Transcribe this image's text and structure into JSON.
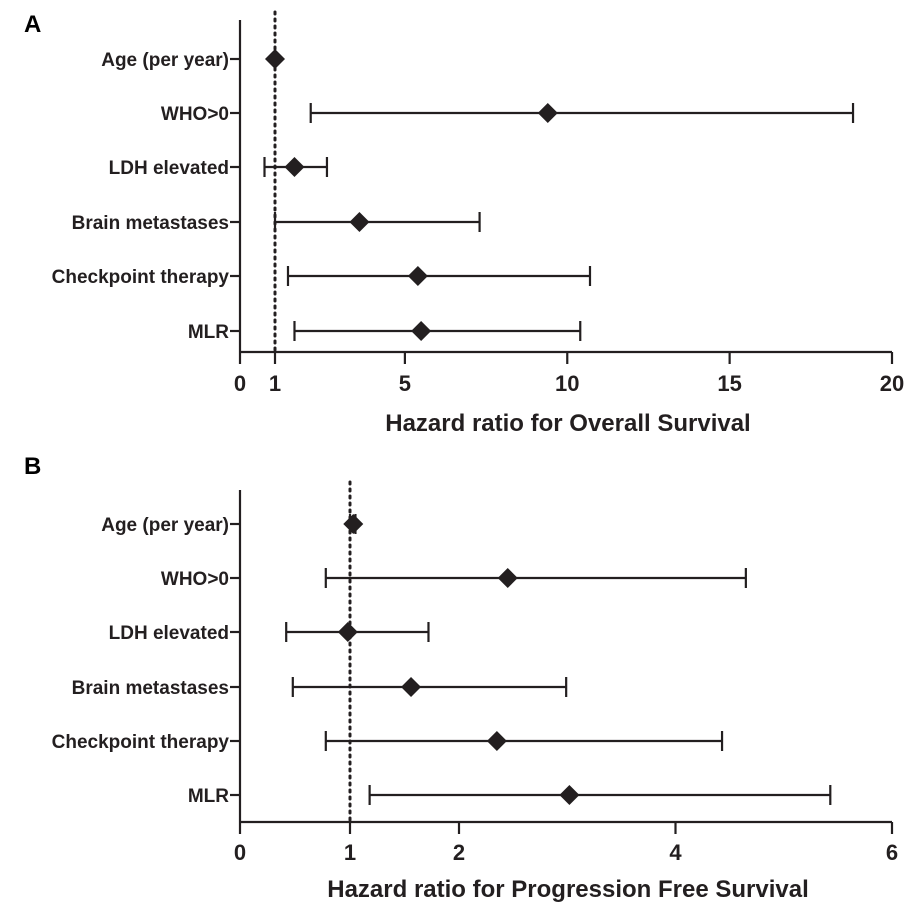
{
  "chart_data": [
    {
      "type": "forest",
      "panel": "A",
      "xlabel": "Hazard ratio for Overall Survival",
      "xlim": [
        0,
        20
      ],
      "xticks": [
        {
          "label": "0",
          "value": 0
        },
        {
          "label": "1",
          "value": 1
        },
        {
          "label": "5",
          "value": 5
        },
        {
          "label": "10",
          "value": 10
        },
        {
          "label": "15",
          "value": 15
        },
        {
          "label": "20",
          "value": 20
        }
      ],
      "reference_line": 1,
      "categories": [
        "Age (per year)",
        "WHO>0",
        "LDH elevated",
        "Brain metastases",
        "Checkpoint therapy",
        "MLR"
      ],
      "estimates": [
        1.0,
        9.4,
        1.6,
        3.6,
        5.4,
        5.5
      ],
      "ci_low": [
        1.0,
        2.1,
        0.7,
        1.0,
        1.4,
        1.6
      ],
      "ci_high": [
        1.0,
        18.8,
        2.6,
        7.3,
        10.7,
        10.4
      ]
    },
    {
      "type": "forest",
      "panel": "B",
      "xlabel": "Hazard ratio for Progression Free Survival",
      "xlim": [
        0,
        6
      ],
      "xticks": [
        {
          "label": "0",
          "value": 0
        },
        {
          "label": "1",
          "value": 1
        },
        {
          "label": "2",
          "value": 2
        },
        {
          "label": "4",
          "value": 4
        },
        {
          "label": "6",
          "value": 6
        }
      ],
      "reference_line": 1,
      "categories": [
        "Age (per year)",
        "WHO>0",
        "LDH elevated",
        "Brain metastases",
        "Checkpoint therapy",
        "MLR"
      ],
      "estimates": [
        1.03,
        2.45,
        0.98,
        1.56,
        2.35,
        3.02
      ],
      "ci_low": [
        1.0,
        0.78,
        0.42,
        0.48,
        0.78,
        1.18
      ],
      "ci_high": [
        1.05,
        4.65,
        1.72,
        2.99,
        4.43,
        5.43
      ]
    }
  ]
}
